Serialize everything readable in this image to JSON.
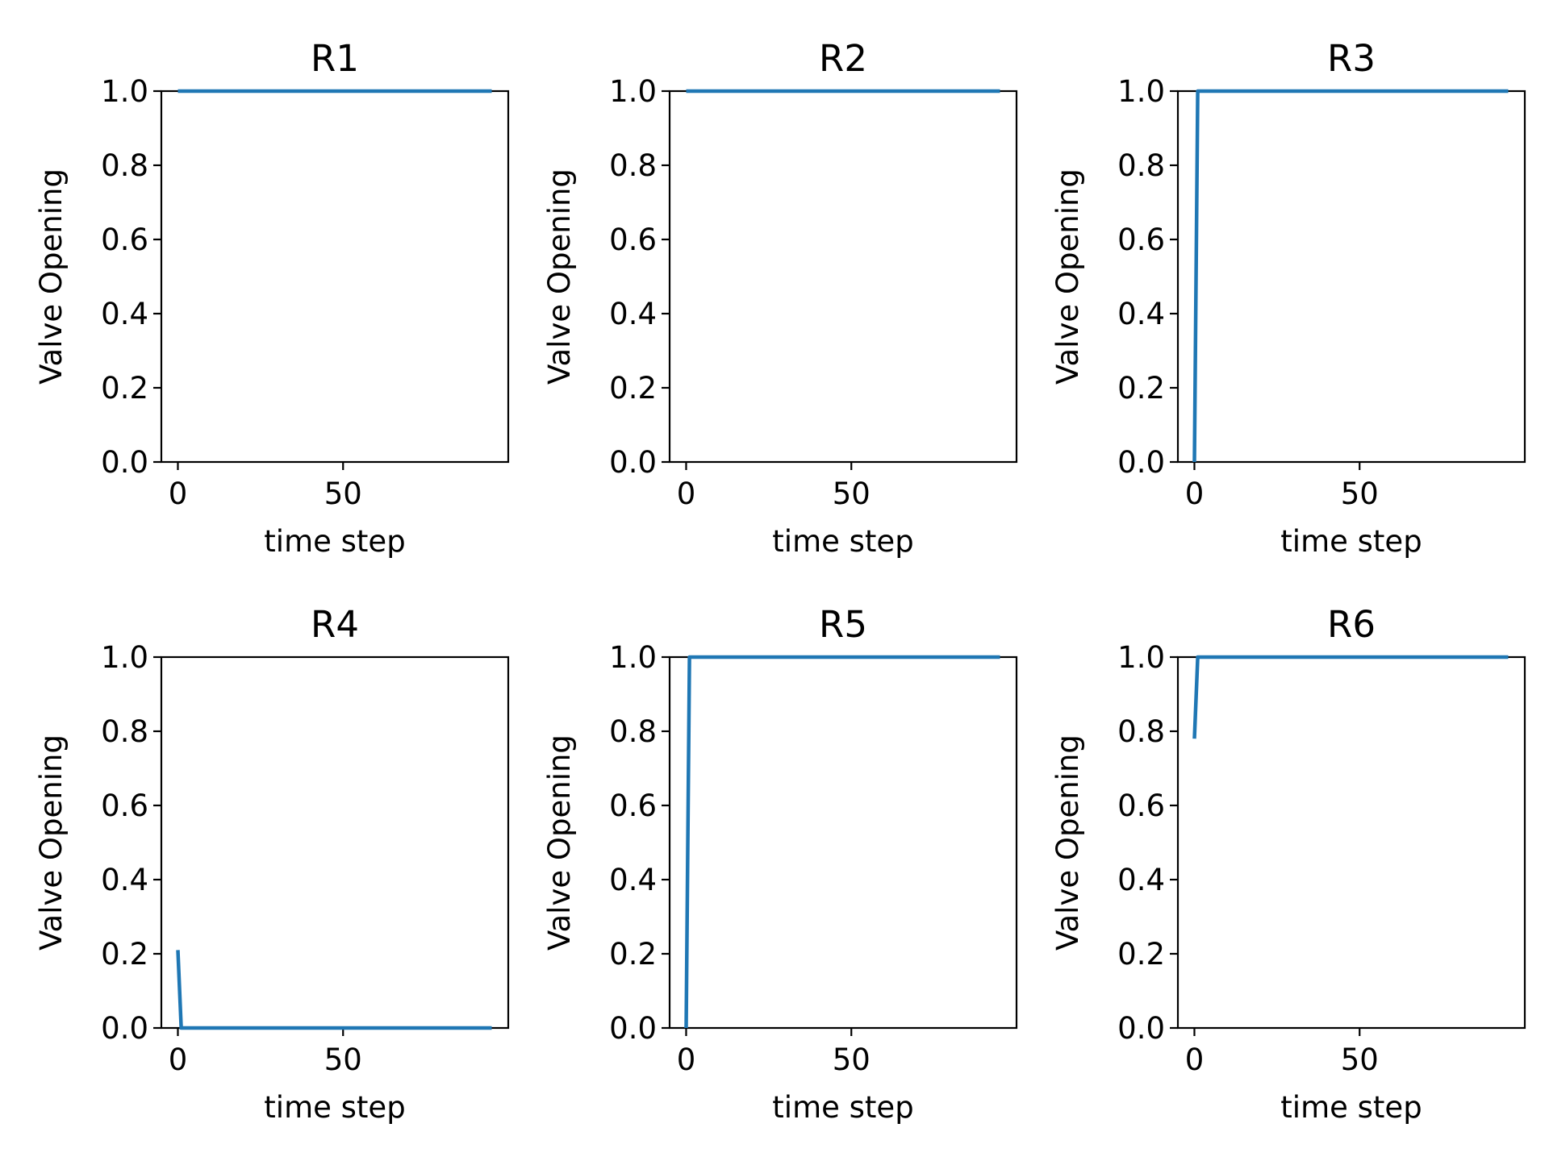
{
  "chart_data": [
    {
      "type": "line",
      "title": "R1",
      "xlabel": "time step",
      "ylabel": "Valve Opening",
      "xlim": [
        -5,
        100
      ],
      "ylim": [
        0.0,
        1.0
      ],
      "xticks": [
        "0",
        "50"
      ],
      "yticks": [
        "0.0",
        "0.2",
        "0.4",
        "0.6",
        "0.8",
        "1.0"
      ],
      "grid": false,
      "series": [
        {
          "color": "#1f77b4",
          "x": [
            0,
            95
          ],
          "y": [
            1.0,
            1.0
          ]
        }
      ]
    },
    {
      "type": "line",
      "title": "R2",
      "xlabel": "time step",
      "ylabel": "Valve Opening",
      "xlim": [
        -5,
        100
      ],
      "ylim": [
        0.0,
        1.0
      ],
      "xticks": [
        "0",
        "50"
      ],
      "yticks": [
        "0.0",
        "0.2",
        "0.4",
        "0.6",
        "0.8",
        "1.0"
      ],
      "grid": false,
      "series": [
        {
          "color": "#1f77b4",
          "x": [
            0,
            95
          ],
          "y": [
            1.0,
            1.0
          ]
        }
      ]
    },
    {
      "type": "line",
      "title": "R3",
      "xlabel": "time step",
      "ylabel": "Valve Opening",
      "xlim": [
        -5,
        100
      ],
      "ylim": [
        0.0,
        1.0
      ],
      "xticks": [
        "0",
        "50"
      ],
      "yticks": [
        "0.0",
        "0.2",
        "0.4",
        "0.6",
        "0.8",
        "1.0"
      ],
      "grid": false,
      "series": [
        {
          "color": "#1f77b4",
          "x": [
            0,
            1,
            95
          ],
          "y": [
            0.0,
            1.0,
            1.0
          ]
        }
      ]
    },
    {
      "type": "line",
      "title": "R4",
      "xlabel": "time step",
      "ylabel": "Valve Opening",
      "xlim": [
        -5,
        100
      ],
      "ylim": [
        0.0,
        1.0
      ],
      "xticks": [
        "0",
        "50"
      ],
      "yticks": [
        "0.0",
        "0.2",
        "0.4",
        "0.6",
        "0.8",
        "1.0"
      ],
      "grid": false,
      "series": [
        {
          "color": "#1f77b4",
          "x": [
            0,
            1,
            95
          ],
          "y": [
            0.21,
            0.0,
            0.0
          ]
        }
      ]
    },
    {
      "type": "line",
      "title": "R5",
      "xlabel": "time step",
      "ylabel": "Valve Opening",
      "xlim": [
        -5,
        100
      ],
      "ylim": [
        0.0,
        1.0
      ],
      "xticks": [
        "0",
        "50"
      ],
      "yticks": [
        "0.0",
        "0.2",
        "0.4",
        "0.6",
        "0.8",
        "1.0"
      ],
      "grid": false,
      "series": [
        {
          "color": "#1f77b4",
          "x": [
            0,
            1,
            95
          ],
          "y": [
            0.0,
            1.0,
            1.0
          ]
        }
      ]
    },
    {
      "type": "line",
      "title": "R6",
      "xlabel": "time step",
      "ylabel": "Valve Opening",
      "xlim": [
        -5,
        100
      ],
      "ylim": [
        0.0,
        1.0
      ],
      "xticks": [
        "0",
        "50"
      ],
      "yticks": [
        "0.0",
        "0.2",
        "0.4",
        "0.6",
        "0.8",
        "1.0"
      ],
      "grid": false,
      "series": [
        {
          "color": "#1f77b4",
          "x": [
            0,
            1,
            95
          ],
          "y": [
            0.78,
            1.0,
            1.0
          ]
        }
      ]
    }
  ]
}
